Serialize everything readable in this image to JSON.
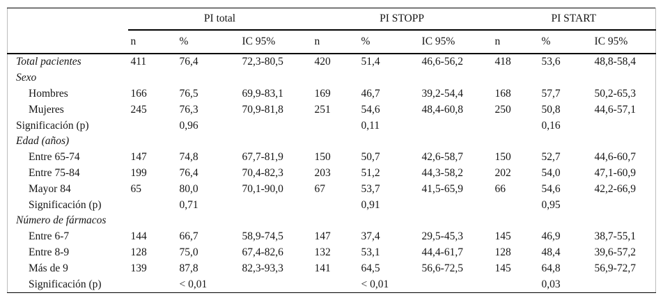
{
  "table": {
    "col_groups": [
      {
        "label": "PI total"
      },
      {
        "label": "PI STOPP"
      },
      {
        "label": "PI START"
      }
    ],
    "sub_headers": [
      "n",
      "%",
      "IC 95%"
    ],
    "rows": [
      {
        "label": "Total pacientes",
        "italic": true,
        "indent": 0,
        "cells": [
          "411",
          "76,4",
          "72,3-80,5",
          "420",
          "51,4",
          "46,6-56,2",
          "418",
          "53,6",
          "48,8-58,4"
        ]
      },
      {
        "label": "Sexo",
        "italic": true,
        "indent": 0,
        "cells": [
          "",
          "",
          "",
          "",
          "",
          "",
          "",
          "",
          ""
        ]
      },
      {
        "label": "Hombres",
        "italic": false,
        "indent": 1,
        "cells": [
          "166",
          "76,5",
          "69,9-83,1",
          "169",
          "46,7",
          "39,2-54,4",
          "168",
          "57,7",
          "50,2-65,3"
        ]
      },
      {
        "label": "Mujeres",
        "italic": false,
        "indent": 1,
        "cells": [
          "245",
          "76,3",
          "70,9-81,8",
          "251",
          "54,6",
          "48,4-60,8",
          "250",
          "50,8",
          "44,6-57,1"
        ]
      },
      {
        "label": "Significación (p)",
        "italic": false,
        "indent": 0,
        "cells": [
          "",
          "0,96",
          "",
          "",
          "0,11",
          "",
          "",
          "0,16",
          ""
        ]
      },
      {
        "label": "Edad (años)",
        "italic": true,
        "indent": 0,
        "cells": [
          "",
          "",
          "",
          "",
          "",
          "",
          "",
          "",
          ""
        ]
      },
      {
        "label": "Entre 65-74",
        "italic": false,
        "indent": 1,
        "cells": [
          "147",
          "74,8",
          "67,7-81,9",
          "150",
          "50,7",
          "42,6-58,7",
          "150",
          "52,7",
          "44,6-60,7"
        ]
      },
      {
        "label": "Entre 75-84",
        "italic": false,
        "indent": 1,
        "cells": [
          "199",
          "76,4",
          "70,4-82,3",
          "203",
          "51,2",
          "44,3-58,2",
          "202",
          "54,0",
          "47,1-60,9"
        ]
      },
      {
        "label": "Mayor 84",
        "italic": false,
        "indent": 1,
        "cells": [
          "65",
          "80,0",
          "70,1-90,0",
          "67",
          "53,7",
          "41,5-65,9",
          "66",
          "54,6",
          "42,2-66,9"
        ]
      },
      {
        "label": "Significación (p)",
        "italic": false,
        "indent": 1,
        "cells": [
          "",
          "0,71",
          "",
          "",
          "0,91",
          "",
          "",
          "0,95",
          ""
        ]
      },
      {
        "label": "Número de fármacos",
        "italic": true,
        "indent": 0,
        "cells": [
          "",
          "",
          "",
          "",
          "",
          "",
          "",
          "",
          ""
        ]
      },
      {
        "label": "Entre 6-7",
        "italic": false,
        "indent": 1,
        "cells": [
          "144",
          "66,7",
          "58,9-74,5",
          "147",
          "37,4",
          "29,5-45,3",
          "145",
          "46,9",
          "38,7-55,1"
        ]
      },
      {
        "label": "Entre 8-9",
        "italic": false,
        "indent": 1,
        "cells": [
          "128",
          "75,0",
          "67,4-82,6",
          "132",
          "53,1",
          "44,4-61,7",
          "128",
          "48,4",
          "39,6-57,2"
        ]
      },
      {
        "label": "Más de 9",
        "italic": false,
        "indent": 1,
        "cells": [
          "139",
          "87,8",
          "82,3-93,3",
          "141",
          "64,5",
          "56,6-72,5",
          "145",
          "64,8",
          "56,9-72,7"
        ]
      },
      {
        "label": "Significación (p)",
        "italic": false,
        "indent": 1,
        "cells": [
          "",
          "< 0,01",
          "",
          "",
          "< 0,01",
          "",
          "",
          "0,03",
          ""
        ]
      }
    ]
  }
}
